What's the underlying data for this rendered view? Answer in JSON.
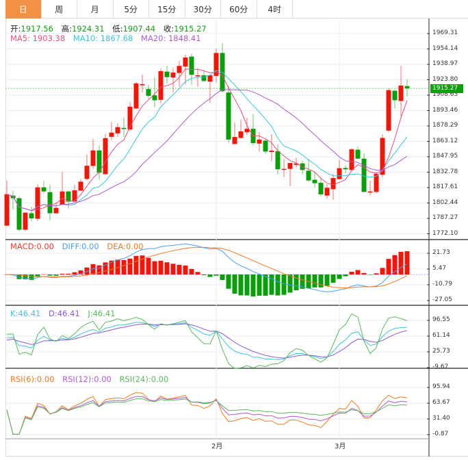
{
  "tabs": [
    "日",
    "周",
    "月",
    "5分",
    "15分",
    "30分",
    "60分",
    "4时"
  ],
  "active_tab": 0,
  "ohlc": {
    "open_label": "开:",
    "open": "1917.56",
    "high_label": "高:",
    "high": "1924.31",
    "low_label": "低:",
    "low": "1907.44",
    "close_label": "收:",
    "close": "1915.27"
  },
  "ma": {
    "ma5": "MA5: 1903.38",
    "ma10": "MA10: 1867.68",
    "ma20": "MA20: 1848.41"
  },
  "macd": {
    "macd": "MACD:0.00",
    "diff": "DIFF:0.00",
    "dea": "DEA:0.00",
    "ticks": [
      "21.73",
      "5.47",
      "-10.79",
      "-27.05"
    ]
  },
  "kdj": {
    "k": "K:46.41",
    "d": "D:46.41",
    "j": "J:46.41",
    "ticks": [
      "96.55",
      "61.14",
      "25.73",
      "-9.67"
    ]
  },
  "rsi": {
    "r6": "RSI(6):0.00",
    "r12": "RSI(12):0.00",
    "r24": "RSI(24):0.00",
    "ticks": [
      "95.94",
      "63.67",
      "31.40",
      "-0.87"
    ]
  },
  "price_ticks": [
    "1969.31",
    "1954.14",
    "1938.97",
    "1923.80",
    "1908.63",
    "1893.46",
    "1878.29",
    "1863.12",
    "1847.95",
    "1832.78",
    "1817.61",
    "1802.44",
    "1787.27",
    "1772.10"
  ],
  "current_price": "1915.27",
  "x_labels": [
    {
      "label": "2月",
      "index": 34
    },
    {
      "label": "3月",
      "index": 54
    }
  ],
  "colors": {
    "up": "#f0160a",
    "down": "#0a9e0a",
    "ma5": "#e8507a",
    "ma10": "#3cc4dc",
    "ma20": "#b05ad0",
    "accent": "#f39041"
  },
  "chart_data": {
    "type": "candlestick",
    "ylim": [
      1772.1,
      1969.31
    ],
    "candles": [
      [
        1780.1,
        1824.6,
        1779.7,
        1811.1
      ],
      [
        1809.7,
        1814.5,
        1795.8,
        1807.1
      ],
      [
        1807.1,
        1808.9,
        1774.5,
        1776.1
      ],
      [
        1776.1,
        1793.6,
        1774.5,
        1792.9
      ],
      [
        1792.3,
        1798.8,
        1784.2,
        1787.3
      ],
      [
        1786.9,
        1821.0,
        1784.6,
        1817.8
      ],
      [
        1817.8,
        1823.9,
        1812.0,
        1813.8
      ],
      [
        1813.1,
        1820.5,
        1785.1,
        1792.3
      ],
      [
        1792.3,
        1802.6,
        1791.4,
        1797.6
      ],
      [
        1800.8,
        1833.3,
        1800.3,
        1813.8
      ],
      [
        1813.8,
        1814.5,
        1797.0,
        1803.7
      ],
      [
        1803.7,
        1820.5,
        1803.7,
        1814.9
      ],
      [
        1814.5,
        1826.1,
        1814.5,
        1823.4
      ],
      [
        1826.1,
        1850.1,
        1824.6,
        1839.1
      ],
      [
        1838.9,
        1865.4,
        1836.2,
        1854.2
      ],
      [
        1854.2,
        1859.1,
        1825.5,
        1832.2
      ],
      [
        1830.8,
        1870.3,
        1830.8,
        1866.3
      ],
      [
        1867.6,
        1882.0,
        1864.3,
        1871.7
      ],
      [
        1871.0,
        1880.7,
        1867.6,
        1877.1
      ],
      [
        1876.4,
        1886.7,
        1867.6,
        1875.3
      ],
      [
        1874.8,
        1901.8,
        1873.3,
        1897.3
      ],
      [
        1895.5,
        1921.9,
        1894.6,
        1920.2
      ],
      [
        1918.4,
        1928.9,
        1911.4,
        1919.5
      ],
      [
        1914.6,
        1918.8,
        1904.7,
        1908.0
      ],
      [
        1908.5,
        1926.0,
        1896.8,
        1903.6
      ],
      [
        1904.0,
        1935.0,
        1900.9,
        1932.3
      ],
      [
        1931.8,
        1937.7,
        1920.4,
        1926.4
      ],
      [
        1926.0,
        1935.6,
        1911.4,
        1930.9
      ],
      [
        1930.5,
        1942.4,
        1917.0,
        1937.4
      ],
      [
        1936.8,
        1948.4,
        1919.3,
        1945.7
      ],
      [
        1946.6,
        1949.1,
        1918.8,
        1928.7
      ],
      [
        1927.1,
        1935.0,
        1917.0,
        1928.2
      ],
      [
        1928.2,
        1933.8,
        1921.5,
        1922.6
      ],
      [
        1922.0,
        1928.2,
        1900.9,
        1928.2
      ],
      [
        1927.6,
        1954.5,
        1920.8,
        1950.2
      ],
      [
        1950.2,
        1959.7,
        1911.4,
        1912.5
      ],
      [
        1911.2,
        1918.1,
        1861.6,
        1864.9
      ],
      [
        1860.5,
        1881.6,
        1860.5,
        1867.4
      ],
      [
        1866.5,
        1884.5,
        1865.4,
        1873.0
      ],
      [
        1872.1,
        1886.3,
        1869.4,
        1875.5
      ],
      [
        1875.5,
        1890.1,
        1859.1,
        1861.4
      ],
      [
        1860.9,
        1872.1,
        1853.1,
        1864.9
      ],
      [
        1863.8,
        1865.4,
        1850.8,
        1853.1
      ],
      [
        1852.6,
        1870.3,
        1843.4,
        1854.0
      ],
      [
        1853.5,
        1860.2,
        1830.6,
        1835.6
      ],
      [
        1835.1,
        1845.7,
        1827.9,
        1836.0
      ],
      [
        1836.0,
        1841.8,
        1819.2,
        1841.8
      ],
      [
        1840.0,
        1847.0,
        1837.4,
        1841.4
      ],
      [
        1841.4,
        1844.1,
        1830.6,
        1834.9
      ],
      [
        1834.2,
        1845.7,
        1822.8,
        1824.6
      ],
      [
        1825.3,
        1833.5,
        1817.8,
        1821.9
      ],
      [
        1822.3,
        1827.3,
        1809.3,
        1810.9
      ],
      [
        1809.7,
        1821.0,
        1806.6,
        1817.4
      ],
      [
        1816.0,
        1831.1,
        1805.3,
        1827.0
      ],
      [
        1825.9,
        1844.8,
        1825.7,
        1836.7
      ],
      [
        1836.9,
        1839.6,
        1831.8,
        1835.6
      ],
      [
        1834.9,
        1856.4,
        1834.0,
        1855.3
      ],
      [
        1854.9,
        1858.2,
        1845.2,
        1846.1
      ],
      [
        1846.1,
        1851.5,
        1813.3,
        1813.3
      ],
      [
        1812.7,
        1824.6,
        1809.7,
        1813.8
      ],
      [
        1813.3,
        1832.2,
        1812.0,
        1831.1
      ],
      [
        1830.2,
        1870.3,
        1827.9,
        1866.5
      ],
      [
        1873.7,
        1915.2,
        1872.1,
        1913.6
      ],
      [
        1913.0,
        1913.0,
        1895.5,
        1903.6
      ],
      [
        1902.9,
        1937.7,
        1887.8,
        1918.1
      ],
      [
        1917.56,
        1924.31,
        1907.44,
        1915.27
      ]
    ]
  }
}
